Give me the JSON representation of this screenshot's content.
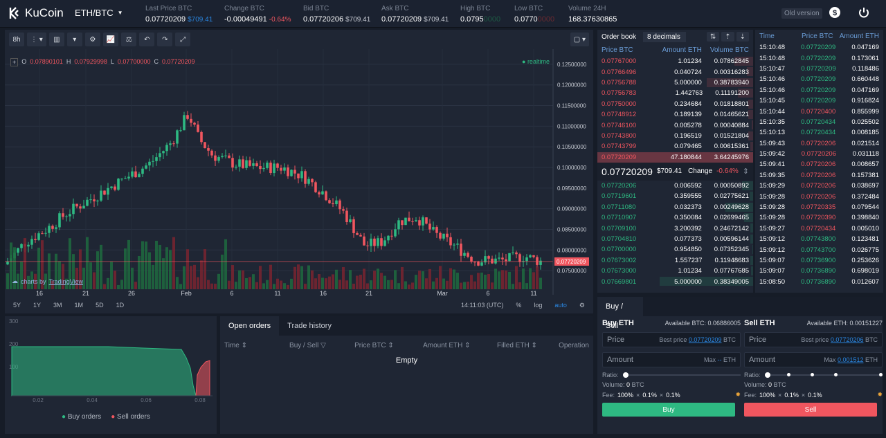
{
  "header": {
    "brand": "KuCoin",
    "pair": "ETH/BTC",
    "stats": [
      {
        "label": "Last Price BTC",
        "value": "0.07720209",
        "sub": "$709.41"
      },
      {
        "label": "Change BTC",
        "value": "-0.00049491",
        "sub": "-0.64%"
      },
      {
        "label": "Bid BTC",
        "value": "0.07720206",
        "sub": "$709.41"
      },
      {
        "label": "Ask BTC",
        "value": "0.07720209",
        "sub": "$709.41"
      },
      {
        "label": "High BTC",
        "value": "0.0795",
        "sub": "0000"
      },
      {
        "label": "Low BTC",
        "value": "0.0770",
        "sub": "0000"
      },
      {
        "label": "Volume 24H",
        "value": "168.37630865",
        "sub": ""
      }
    ],
    "old_version": "Old version"
  },
  "chart": {
    "interval": "8h",
    "ohlc": {
      "o": "0.07890101",
      "h": "0.07929998",
      "l": "0.07700000",
      "c": "0.07720209"
    },
    "realtime": "realtime",
    "y_ticks": [
      "0.12500000",
      "0.12000000",
      "0.11500000",
      "0.11000000",
      "0.10500000",
      "0.10000000",
      "0.09500000",
      "0.09000000",
      "0.08500000",
      "0.08000000",
      "0.07500000"
    ],
    "price_tag": "0.07720209",
    "x_ticks": [
      "16",
      "21",
      "26",
      "Feb",
      "6",
      "11",
      "16",
      "21",
      "Mar",
      "6",
      "11"
    ],
    "tv_label": "charts by",
    "tv_link": "TradingView",
    "timeframes": [
      "5Y",
      "1Y",
      "3M",
      "1M",
      "5D",
      "1D"
    ],
    "time": "14:11:03 (UTC)",
    "pct": "%",
    "log": "log",
    "auto": "auto"
  },
  "depth": {
    "y_ticks": [
      "300",
      "200",
      "100"
    ],
    "x_ticks": [
      "0.02",
      "0.04",
      "0.06",
      "0.08"
    ],
    "legend": [
      "Buy orders",
      "Sell orders"
    ],
    "colors": {
      "buy": "#2eb982",
      "sell": "#f0565f"
    }
  },
  "orders": {
    "tabs": [
      "Open orders",
      "Trade history"
    ],
    "columns": [
      "Time",
      "Buy / Sell",
      "Price BTC",
      "Amount ETH",
      "Filled ETH",
      "Operation"
    ],
    "empty": "Empty"
  },
  "orderbook": {
    "title": "Order book",
    "decimals": "8 decimals",
    "columns": [
      "Price BTC",
      "Amount ETH",
      "Volume BTC"
    ],
    "asks": [
      [
        "0.07767000",
        "1.01234",
        "0.07862845"
      ],
      [
        "0.07766496",
        "0.040724",
        "0.00316283"
      ],
      [
        "0.07756788",
        "5.000000",
        "0.38783940"
      ],
      [
        "0.07756783",
        "1.442763",
        "0.11191200"
      ],
      [
        "0.07750000",
        "0.234684",
        "0.01818801"
      ],
      [
        "0.07748912",
        "0.189139",
        "0.01465621"
      ],
      [
        "0.07746100",
        "0.005278",
        "0.00040884"
      ],
      [
        "0.07743800",
        "0.196519",
        "0.01521804"
      ],
      [
        "0.07743799",
        "0.079465",
        "0.00615361"
      ],
      [
        "0.07720209",
        "47.180844",
        "3.64245976"
      ]
    ],
    "last": "0.07720209",
    "last_usd": "$709.41",
    "change_label": "Change",
    "change": "-0.64%",
    "bids": [
      [
        "0.07720206",
        "0.006592",
        "0.00050892"
      ],
      [
        "0.07719601",
        "0.359555",
        "0.02775621"
      ],
      [
        "0.07711080",
        "0.032373",
        "0.00249628"
      ],
      [
        "0.07710907",
        "0.350084",
        "0.02699465"
      ],
      [
        "0.07709100",
        "3.200392",
        "0.24672142"
      ],
      [
        "0.07704810",
        "0.077373",
        "0.00596144"
      ],
      [
        "0.07700000",
        "0.954850",
        "0.07352345"
      ],
      [
        "0.07673002",
        "1.557237",
        "0.11948683"
      ],
      [
        "0.07673000",
        "1.01234",
        "0.07767685"
      ],
      [
        "0.07669801",
        "5.000000",
        "0.38349005"
      ]
    ]
  },
  "trades": {
    "columns": [
      "Time",
      "Price BTC",
      "Amount ETH"
    ],
    "rows": [
      [
        "15:10:48",
        "0.07720209",
        "0.047169",
        "g"
      ],
      [
        "15:10:48",
        "0.07720209",
        "0.173061",
        "g"
      ],
      [
        "15:10:47",
        "0.07720209",
        "0.118486",
        "g"
      ],
      [
        "15:10:46",
        "0.07720209",
        "0.660448",
        "g"
      ],
      [
        "15:10:46",
        "0.07720209",
        "0.047169",
        "g"
      ],
      [
        "15:10:45",
        "0.07720209",
        "0.916824",
        "g"
      ],
      [
        "15:10:44",
        "0.07720400",
        "0.855999",
        "r"
      ],
      [
        "15:10:35",
        "0.07720434",
        "0.025502",
        "g"
      ],
      [
        "15:10:13",
        "0.07720434",
        "0.008185",
        "g"
      ],
      [
        "15:09:43",
        "0.07720206",
        "0.021514",
        "r"
      ],
      [
        "15:09:42",
        "0.07720206",
        "0.031118",
        "r"
      ],
      [
        "15:09:41",
        "0.07720206",
        "0.008657",
        "r"
      ],
      [
        "15:09:35",
        "0.07720206",
        "0.157381",
        "r"
      ],
      [
        "15:09:29",
        "0.07720206",
        "0.038697",
        "r"
      ],
      [
        "15:09:28",
        "0.07720206",
        "0.372484",
        "r"
      ],
      [
        "15:09:28",
        "0.07720335",
        "0.079544",
        "r"
      ],
      [
        "15:09:28",
        "0.07720390",
        "0.398840",
        "r"
      ],
      [
        "15:09:27",
        "0.07720434",
        "0.005010",
        "r"
      ],
      [
        "15:09:12",
        "0.07743800",
        "0.123481",
        "g"
      ],
      [
        "15:09:12",
        "0.07743700",
        "0.026775",
        "g"
      ],
      [
        "15:09:07",
        "0.07736900",
        "0.253626",
        "g"
      ],
      [
        "15:09:07",
        "0.07736890",
        "0.698019",
        "g"
      ],
      [
        "15:08:50",
        "0.07736890",
        "0.012607",
        "g"
      ]
    ]
  },
  "buysell": {
    "tab": "Buy / Sell",
    "buy": {
      "title": "Buy ETH",
      "avail": "Available BTC: 0.06886005",
      "price": "Price",
      "best": "Best price",
      "best_val": "0.07720209",
      "unit": "BTC",
      "amount": "Amount",
      "max": "Max",
      "max_val": "--",
      "max_unit": "ETH",
      "ratio": "Ratio:",
      "volume": "Volume:",
      "vol_val": "0",
      "vol_unit": "BTC",
      "fee": "Fee:",
      "fee1": "100%",
      "fee2": "0.1%",
      "fee3": "0.1%",
      "btn": "Buy"
    },
    "sell": {
      "title": "Sell ETH",
      "avail": "Available ETH: 0.00151227",
      "price": "Price",
      "best": "Best price",
      "best_val": "0.07720206",
      "unit": "BTC",
      "amount": "Amount",
      "max": "Max",
      "max_val": "0.001512",
      "max_unit": "ETH",
      "ratio": "Ratio:",
      "volume": "Volume:",
      "vol_val": "0",
      "vol_unit": "BTC",
      "fee": "Fee:",
      "fee1": "100%",
      "fee2": "0.1%",
      "fee3": "0.1%",
      "btn": "Sell"
    }
  }
}
